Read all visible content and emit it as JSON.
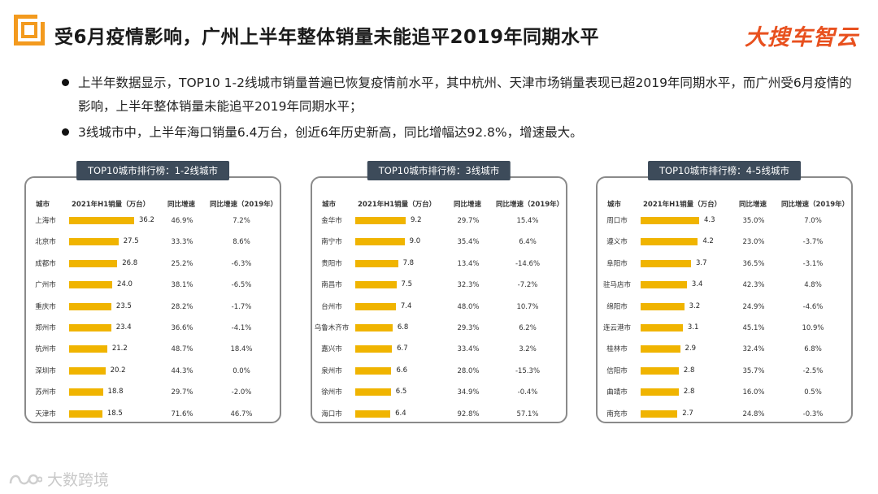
{
  "header": {
    "title": "受6月疫情影响，广州上半年整体销量未能追平2019年同期水平",
    "brand": "大搜车智云"
  },
  "bullets": [
    "上半年数据显示，TOP10 1-2线城市销量普遍已恢复疫情前水平，其中杭州、天津市场销量表现已超2019年同期水平，而广州受6月疫情的影响，上半年整体销量未能追平2019年同期水平；",
    "3线城市中，上半年海口销量6.4万台，创近6年历史新高，同比增幅达92.8%，增速最大。"
  ],
  "columns": {
    "city": "城市",
    "sales": "2021年H1销量（万台）",
    "yoy": "同比增速",
    "yoy2019": "同比增速（2019年）"
  },
  "bar_color": "#f0b400",
  "chart_data": [
    {
      "type": "bar",
      "title": "TOP10城市排行榜：1-2线城市",
      "categories": [
        "上海市",
        "北京市",
        "成都市",
        "广州市",
        "重庆市",
        "郑州市",
        "杭州市",
        "深圳市",
        "苏州市",
        "天津市"
      ],
      "values": [
        36.2,
        27.5,
        26.8,
        24.0,
        23.5,
        23.4,
        21.2,
        20.2,
        18.8,
        18.5
      ],
      "value_labels": [
        "36.2",
        "27.5",
        "26.8",
        "24.0",
        "23.5",
        "23.4",
        "21.2",
        "20.2",
        "18.8",
        "18.5"
      ],
      "yoy": [
        "46.9%",
        "33.3%",
        "25.2%",
        "38.1%",
        "28.2%",
        "36.6%",
        "48.7%",
        "44.3%",
        "29.7%",
        "71.6%"
      ],
      "yoy2019": [
        "7.2%",
        "8.6%",
        "-6.3%",
        "-6.5%",
        "-1.7%",
        "-4.1%",
        "18.4%",
        "0.0%",
        "-2.0%",
        "46.7%"
      ]
    },
    {
      "type": "bar",
      "title": "TOP10城市排行榜：3线城市",
      "categories": [
        "金华市",
        "南宁市",
        "贵阳市",
        "南昌市",
        "台州市",
        "乌鲁木齐市",
        "嘉兴市",
        "泉州市",
        "徐州市",
        "海口市"
      ],
      "values": [
        9.2,
        9.0,
        7.8,
        7.5,
        7.4,
        6.8,
        6.7,
        6.6,
        6.5,
        6.4
      ],
      "value_labels": [
        "9.2",
        "9.0",
        "7.8",
        "7.5",
        "7.4",
        "6.8",
        "6.7",
        "6.6",
        "6.5",
        "6.4"
      ],
      "yoy": [
        "29.7%",
        "35.4%",
        "13.4%",
        "32.3%",
        "48.0%",
        "29.3%",
        "33.4%",
        "28.0%",
        "34.9%",
        "92.8%"
      ],
      "yoy2019": [
        "15.4%",
        "6.4%",
        "-14.6%",
        "-7.2%",
        "10.7%",
        "6.2%",
        "3.2%",
        "-15.3%",
        "-0.4%",
        "57.1%"
      ]
    },
    {
      "type": "bar",
      "title": "TOP10城市排行榜：4-5线城市",
      "categories": [
        "周口市",
        "遵义市",
        "阜阳市",
        "驻马店市",
        "绵阳市",
        "连云港市",
        "桂林市",
        "信阳市",
        "曲靖市",
        "南充市"
      ],
      "values": [
        4.3,
        4.2,
        3.7,
        3.4,
        3.2,
        3.1,
        2.9,
        2.8,
        2.8,
        2.7
      ],
      "value_labels": [
        "4.3",
        "4.2",
        "3.7",
        "3.4",
        "3.2",
        "3.1",
        "2.9",
        "2.8",
        "2.8",
        "2.7"
      ],
      "yoy": [
        "35.0%",
        "23.0%",
        "36.5%",
        "42.3%",
        "24.9%",
        "45.1%",
        "32.4%",
        "35.7%",
        "16.0%",
        "24.8%"
      ],
      "yoy2019": [
        "7.0%",
        "-3.7%",
        "-3.1%",
        "4.8%",
        "-4.6%",
        "10.9%",
        "6.8%",
        "-2.5%",
        "0.5%",
        "-0.3%"
      ]
    }
  ],
  "watermark": "大数跨境"
}
